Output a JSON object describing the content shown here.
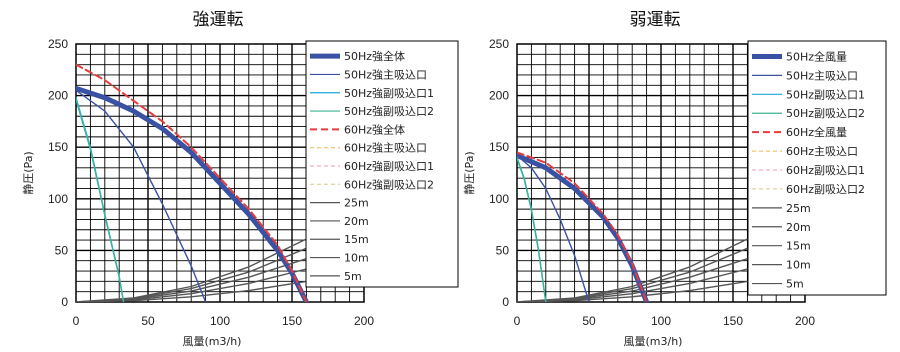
{
  "chart_data": [
    {
      "type": "line",
      "title": "強運転",
      "xlabel": "風量(m3/h)",
      "ylabel": "静圧(Pa)",
      "xlim": [
        0,
        200
      ],
      "ylim": [
        0,
        250
      ],
      "x_ticks": [
        "0",
        "50",
        "100",
        "150",
        "200"
      ],
      "y_ticks": [
        "0",
        "50",
        "100",
        "150",
        "200",
        "250"
      ],
      "grid": true,
      "legend_position": "right",
      "series": [
        {
          "name": "50Hz強全体",
          "color": "#3a52a4",
          "style": "thick",
          "x": [
            0,
            20,
            40,
            60,
            80,
            100,
            120,
            140,
            150,
            160
          ],
          "y": [
            207,
            198,
            185,
            168,
            145,
            115,
            85,
            50,
            28,
            0
          ]
        },
        {
          "name": "50Hz強主吸込口",
          "color": "#3a52a4",
          "style": "thin",
          "x": [
            0,
            20,
            40,
            60,
            70,
            80,
            90
          ],
          "y": [
            205,
            185,
            150,
            95,
            65,
            35,
            0
          ]
        },
        {
          "name": "50Hz強副吸込口1",
          "color": "#1ea8e0",
          "style": "thin",
          "x": [
            0,
            10,
            20,
            30,
            33
          ],
          "y": [
            198,
            150,
            85,
            25,
            0
          ]
        },
        {
          "name": "50Hz強副吸込口2",
          "color": "#3cb394",
          "style": "thin",
          "x": [
            0,
            10,
            20,
            30,
            33
          ],
          "y": [
            196,
            148,
            84,
            24,
            0
          ]
        },
        {
          "name": "60Hz強全体",
          "color": "#e63c3c",
          "style": "dashed",
          "x": [
            0,
            20,
            40,
            60,
            80,
            100,
            120,
            140,
            150,
            160
          ],
          "y": [
            230,
            215,
            195,
            175,
            150,
            120,
            90,
            55,
            30,
            0
          ]
        },
        {
          "name": "60Hz強主吸込口",
          "color": "#f0b44c",
          "style": "dashed",
          "x": [],
          "y": []
        },
        {
          "name": "60Hz強副吸込口1",
          "color": "#e89ab6",
          "style": "dashed",
          "x": [],
          "y": []
        },
        {
          "name": "60Hz強副吸込口2",
          "color": "#d7c98a",
          "style": "dashed",
          "x": [],
          "y": []
        },
        {
          "name": "25m",
          "color": "#555555",
          "style": "thin",
          "x": [
            0,
            40,
            80,
            120,
            160,
            200
          ],
          "y": [
            0,
            4,
            15,
            34,
            61,
            96
          ]
        },
        {
          "name": "20m",
          "color": "#555555",
          "style": "thin",
          "x": [
            0,
            40,
            80,
            120,
            160,
            200
          ],
          "y": [
            0,
            3.3,
            13,
            29,
            52,
            80
          ]
        },
        {
          "name": "15m",
          "color": "#555555",
          "style": "thin",
          "x": [
            0,
            40,
            80,
            120,
            160,
            200
          ],
          "y": [
            0,
            2.7,
            10.6,
            24,
            42,
            65
          ]
        },
        {
          "name": "10m",
          "color": "#555555",
          "style": "thin",
          "x": [
            0,
            40,
            80,
            120,
            160,
            200
          ],
          "y": [
            0,
            2,
            8,
            18,
            32,
            50
          ]
        },
        {
          "name": "5m",
          "color": "#555555",
          "style": "thin",
          "x": [
            0,
            40,
            80,
            120,
            160,
            200
          ],
          "y": [
            0,
            1.3,
            5,
            11,
            20,
            31
          ]
        }
      ]
    },
    {
      "type": "line",
      "title": "弱運転",
      "xlabel": "風量(m3/h)",
      "ylabel": "静圧(Pa)",
      "xlim": [
        0,
        200
      ],
      "ylim": [
        0,
        250
      ],
      "x_ticks": [
        "0",
        "50",
        "100",
        "150",
        "200"
      ],
      "y_ticks": [
        "0",
        "50",
        "100",
        "150",
        "200",
        "250"
      ],
      "grid": true,
      "legend_position": "right",
      "series": [
        {
          "name": "50Hz全風量",
          "color": "#3a52a4",
          "style": "thick",
          "x": [
            0,
            20,
            40,
            60,
            70,
            80,
            90
          ],
          "y": [
            142,
            130,
            110,
            82,
            62,
            35,
            0
          ]
        },
        {
          "name": "50Hz主吸込口",
          "color": "#3a52a4",
          "style": "thin",
          "x": [
            0,
            10,
            20,
            30,
            40,
            50
          ],
          "y": [
            142,
            130,
            110,
            80,
            45,
            0
          ]
        },
        {
          "name": "50Hz副吸込口1",
          "color": "#1ea8e0",
          "style": "thin",
          "x": [
            0,
            5,
            10,
            15,
            20
          ],
          "y": [
            140,
            120,
            90,
            50,
            0
          ]
        },
        {
          "name": "50Hz副吸込口2",
          "color": "#3cb394",
          "style": "thin",
          "x": [
            0,
            5,
            10,
            15,
            20
          ],
          "y": [
            139,
            119,
            89,
            49,
            0
          ]
        },
        {
          "name": "60Hz全風量",
          "color": "#e63c3c",
          "style": "dashed",
          "x": [
            0,
            20,
            40,
            60,
            70,
            80,
            90
          ],
          "y": [
            145,
            135,
            115,
            85,
            65,
            37,
            0
          ]
        },
        {
          "name": "60Hz主吸込口",
          "color": "#f0b44c",
          "style": "dashed",
          "x": [],
          "y": []
        },
        {
          "name": "60Hz副吸込口1",
          "color": "#e89ab6",
          "style": "dashed",
          "x": [],
          "y": []
        },
        {
          "name": "60Hz副吸込口2",
          "color": "#d7c98a",
          "style": "dashed",
          "x": [],
          "y": []
        },
        {
          "name": "25m",
          "color": "#555555",
          "style": "thin",
          "x": [
            0,
            40,
            80,
            120,
            160,
            200
          ],
          "y": [
            0,
            4,
            15,
            34,
            61,
            96
          ]
        },
        {
          "name": "20m",
          "color": "#555555",
          "style": "thin",
          "x": [
            0,
            40,
            80,
            120,
            160,
            200
          ],
          "y": [
            0,
            3.3,
            13,
            29,
            52,
            80
          ]
        },
        {
          "name": "15m",
          "color": "#555555",
          "style": "thin",
          "x": [
            0,
            40,
            80,
            120,
            160,
            200
          ],
          "y": [
            0,
            2.7,
            10.6,
            24,
            42,
            65
          ]
        },
        {
          "name": "10m",
          "color": "#555555",
          "style": "thin",
          "x": [
            0,
            40,
            80,
            120,
            160,
            200
          ],
          "y": [
            0,
            2,
            8,
            18,
            32,
            50
          ]
        },
        {
          "name": "5m",
          "color": "#555555",
          "style": "thin",
          "x": [
            0,
            40,
            80,
            120,
            160,
            200
          ],
          "y": [
            0,
            1.3,
            5,
            11,
            20,
            31
          ]
        }
      ]
    }
  ]
}
